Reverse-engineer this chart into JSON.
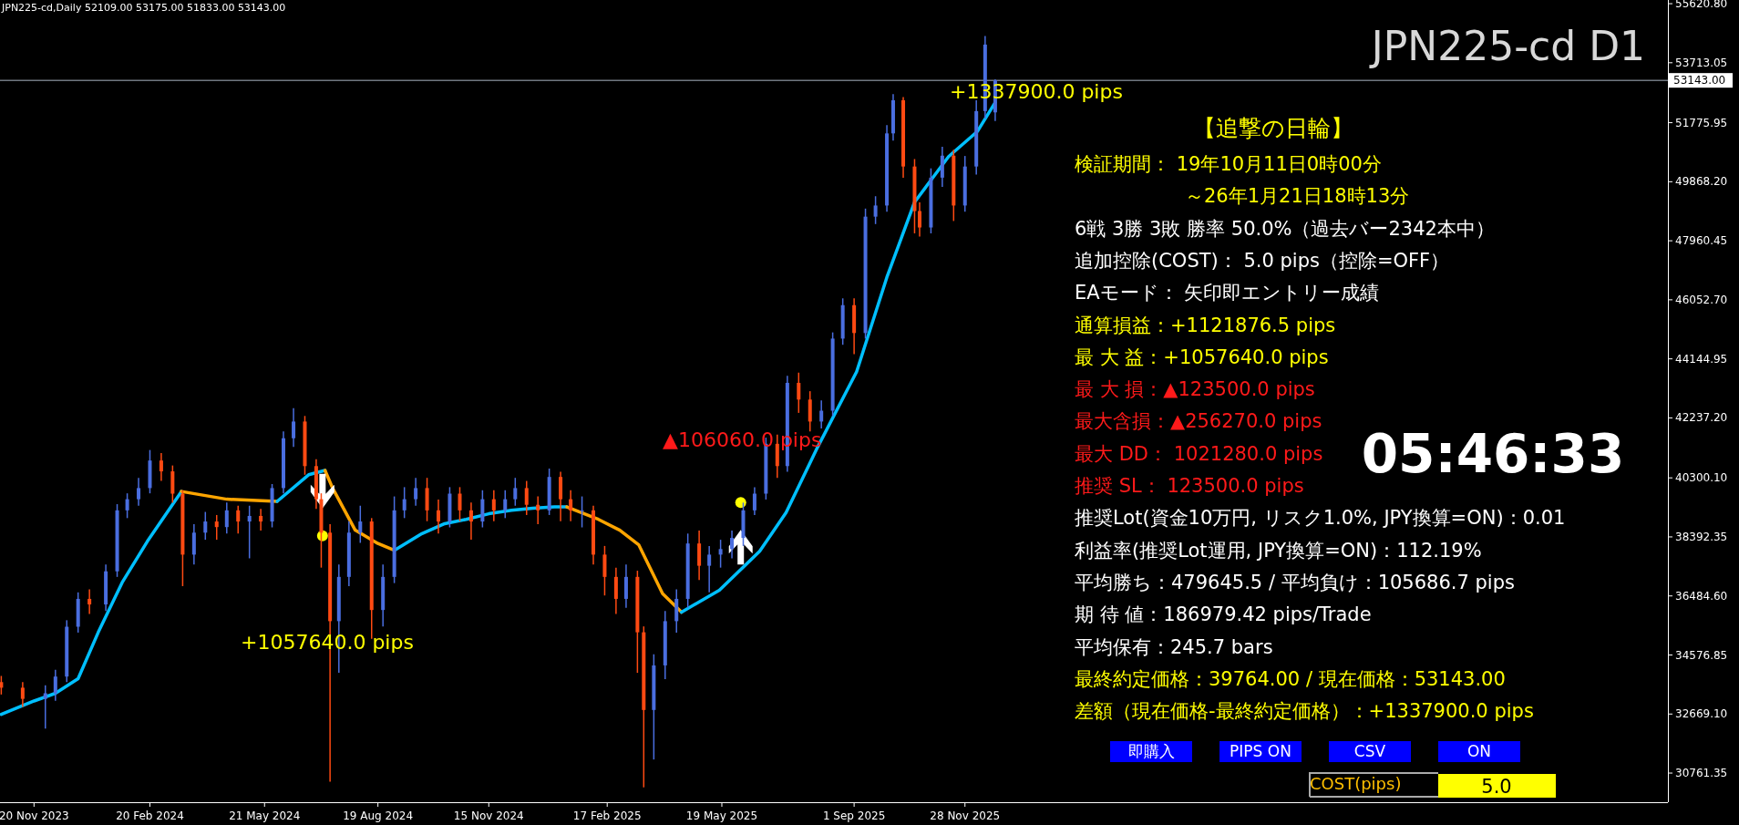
{
  "chart_data": {
    "type": "candlestick",
    "title": "JPN225-cd D1",
    "xlim": [
      "2023-10-24",
      "2027-06-09"
    ],
    "ylim": [
      29820,
      55740
    ],
    "yticks": [
      {
        "value": 55620.8,
        "label": "55620.80"
      },
      {
        "value": 53713.05,
        "label": "53713.05"
      },
      {
        "value": 51775.95,
        "label": "51775.95"
      },
      {
        "value": 49868.2,
        "label": "49868.20"
      },
      {
        "value": 47960.45,
        "label": "47960.45"
      },
      {
        "value": 46052.7,
        "label": "46052.70"
      },
      {
        "value": 44144.95,
        "label": "44144.95"
      },
      {
        "value": 42237.2,
        "label": "42237.20"
      },
      {
        "value": 40300.1,
        "label": "40300.10"
      },
      {
        "value": 38392.35,
        "label": "38392.35"
      },
      {
        "value": 36484.6,
        "label": "36484.60"
      },
      {
        "value": 34576.85,
        "label": "34576.85"
      },
      {
        "value": 32669.1,
        "label": "32669.10"
      },
      {
        "value": 30761.35,
        "label": "30761.35"
      }
    ],
    "xticks": [
      {
        "value": "2023-11-20",
        "label": "20 Nov 2023"
      },
      {
        "value": "2024-02-20",
        "label": "20 Feb 2024"
      },
      {
        "value": "2024-05-21",
        "label": "21 May 2024"
      },
      {
        "value": "2024-08-19",
        "label": "19 Aug 2024"
      },
      {
        "value": "2024-11-15",
        "label": "15 Nov 2024"
      },
      {
        "value": "2025-02-17",
        "label": "17 Feb 2025"
      },
      {
        "value": "2025-05-19",
        "label": "19 May 2025"
      },
      {
        "value": "2025-09-01",
        "label": "1 Sep 2025"
      },
      {
        "value": "2025-11-28",
        "label": "28 Nov 2025"
      }
    ],
    "ref_lines": [
      {
        "axis": "y",
        "value": 53143,
        "label": "53143.00",
        "color": "#a9b4c2"
      }
    ],
    "x": [
      "2023-10-25",
      "2023-11-11",
      "2023-11-29",
      "2023-12-07",
      "2023-12-16",
      "2023-12-25",
      "2024-01-03",
      "2024-01-16",
      "2024-01-25",
      "2024-02-02",
      "2024-02-11",
      "2024-02-20",
      "2024-02-29",
      "2024-03-09",
      "2024-03-17",
      "2024-03-26",
      "2024-04-04",
      "2024-04-13",
      "2024-04-21",
      "2024-04-30",
      "2024-05-09",
      "2024-05-18",
      "2024-05-27",
      "2024-06-05",
      "2024-06-13",
      "2024-06-22",
      "2024-07-01",
      "2024-07-05",
      "2024-07-12",
      "2024-07-19",
      "2024-07-27",
      "2024-08-05",
      "2024-08-14",
      "2024-08-23",
      "2024-09-01",
      "2024-09-09",
      "2024-09-18",
      "2024-09-27",
      "2024-10-06",
      "2024-10-15",
      "2024-10-23",
      "2024-11-01",
      "2024-11-10",
      "2024-11-19",
      "2024-11-28",
      "2024-12-06",
      "2024-12-15",
      "2024-12-24",
      "2025-01-02",
      "2025-01-11",
      "2025-01-19",
      "2025-01-28",
      "2025-02-06",
      "2025-02-15",
      "2025-02-24",
      "2025-03-04",
      "2025-03-13",
      "2025-03-18",
      "2025-03-26",
      "2025-04-04",
      "2025-04-13",
      "2025-04-22",
      "2025-05-01",
      "2025-05-09",
      "2025-05-18",
      "2025-05-27",
      "2025-06-05",
      "2025-06-14",
      "2025-06-23",
      "2025-07-02",
      "2025-07-10",
      "2025-07-19",
      "2025-07-28",
      "2025-08-06",
      "2025-08-15",
      "2025-08-23",
      "2025-09-01",
      "2025-09-10",
      "2025-09-18",
      "2025-09-27",
      "2025-10-02",
      "2025-10-10",
      "2025-10-19",
      "2025-10-23",
      "2025-11-01",
      "2025-11-10",
      "2025-11-19",
      "2025-11-28",
      "2025-12-07",
      "2025-12-14",
      "2025-12-22"
    ],
    "ohlc": [
      [
        33700,
        33900,
        33300,
        33520
      ],
      [
        33520,
        33700,
        32900,
        33160
      ],
      [
        33160,
        33600,
        32200,
        33340
      ],
      [
        33340,
        34100,
        33100,
        33880
      ],
      [
        33880,
        35700,
        33700,
        35490
      ],
      [
        35490,
        36600,
        35300,
        36390
      ],
      [
        36390,
        36700,
        35900,
        36210
      ],
      [
        36210,
        37500,
        36000,
        37280
      ],
      [
        37280,
        39450,
        37100,
        39250
      ],
      [
        39250,
        39800,
        39000,
        39610
      ],
      [
        39610,
        40300,
        39400,
        39970
      ],
      [
        39970,
        41200,
        39800,
        40860
      ],
      [
        40860,
        41100,
        40200,
        40510
      ],
      [
        40510,
        40700,
        39500,
        39790
      ],
      [
        39790,
        39900,
        36800,
        37820
      ],
      [
        37820,
        38800,
        37500,
        38530
      ],
      [
        38530,
        39200,
        38300,
        38890
      ],
      [
        38890,
        39100,
        38300,
        38710
      ],
      [
        38710,
        39500,
        38500,
        39250
      ],
      [
        39250,
        39400,
        38500,
        38890
      ],
      [
        38890,
        39400,
        37700,
        39070
      ],
      [
        39070,
        39300,
        38600,
        38890
      ],
      [
        38890,
        40100,
        38700,
        39970
      ],
      [
        39970,
        41800,
        39800,
        41580
      ],
      [
        41580,
        42550,
        41300,
        42120
      ],
      [
        42120,
        42300,
        40400,
        40680
      ],
      [
        40680,
        40900,
        39300,
        39610
      ],
      [
        39610,
        39800,
        37400,
        38530
      ],
      [
        38530,
        38800,
        30480,
        35670
      ],
      [
        35670,
        37500,
        34000,
        37100
      ],
      [
        37100,
        38900,
        36800,
        38530
      ],
      [
        38530,
        39400,
        38200,
        38890
      ],
      [
        38890,
        39000,
        35100,
        36030
      ],
      [
        36030,
        37500,
        35500,
        37100
      ],
      [
        37100,
        39700,
        36900,
        39250
      ],
      [
        39250,
        40000,
        39000,
        39610
      ],
      [
        39610,
        40300,
        39400,
        39970
      ],
      [
        39970,
        40300,
        38900,
        39250
      ],
      [
        39250,
        39600,
        38500,
        38890
      ],
      [
        38890,
        40000,
        38700,
        39790
      ],
      [
        39790,
        40000,
        38900,
        39250
      ],
      [
        39250,
        39500,
        38300,
        38890
      ],
      [
        38890,
        39900,
        38700,
        39610
      ],
      [
        39610,
        39900,
        38900,
        39250
      ],
      [
        39250,
        39900,
        39000,
        39610
      ],
      [
        39610,
        40300,
        39400,
        39970
      ],
      [
        39970,
        40200,
        39100,
        39430
      ],
      [
        39430,
        39700,
        38800,
        39250
      ],
      [
        39250,
        40600,
        39100,
        40330
      ],
      [
        40330,
        40500,
        38900,
        39610
      ],
      [
        39610,
        39900,
        38900,
        39250
      ],
      [
        39250,
        39700,
        38700,
        39250
      ],
      [
        39250,
        39400,
        37500,
        37820
      ],
      [
        37820,
        38100,
        36500,
        37100
      ],
      [
        37100,
        37400,
        35900,
        36390
      ],
      [
        36390,
        37500,
        36100,
        37100
      ],
      [
        37100,
        37300,
        34000,
        35310
      ],
      [
        35310,
        35500,
        30300,
        32800
      ],
      [
        32800,
        34600,
        31200,
        34240
      ],
      [
        34240,
        36000,
        33800,
        35670
      ],
      [
        35670,
        36700,
        35300,
        36390
      ],
      [
        36390,
        38500,
        36100,
        38180
      ],
      [
        38180,
        38600,
        37000,
        37460
      ],
      [
        37460,
        38100,
        36600,
        37820
      ],
      [
        37820,
        38300,
        37400,
        38000
      ],
      [
        38000,
        38600,
        37700,
        38360
      ],
      [
        38360,
        39500,
        38100,
        39250
      ],
      [
        39250,
        40000,
        39100,
        39790
      ],
      [
        39790,
        41600,
        39600,
        41400
      ],
      [
        41400,
        41700,
        40300,
        40680
      ],
      [
        40680,
        43600,
        40500,
        43370
      ],
      [
        43370,
        43700,
        42400,
        42830
      ],
      [
        42830,
        43100,
        41800,
        42120
      ],
      [
        42120,
        42800,
        41900,
        42470
      ],
      [
        42470,
        45000,
        42300,
        44800
      ],
      [
        44800,
        46100,
        44600,
        45880
      ],
      [
        45880,
        46100,
        44300,
        44980
      ],
      [
        44980,
        49000,
        44800,
        48740
      ],
      [
        48740,
        49400,
        48500,
        49100
      ],
      [
        49100,
        51700,
        48900,
        51430
      ],
      [
        51430,
        52700,
        51200,
        52500
      ],
      [
        52500,
        52600,
        50000,
        50360
      ],
      [
        50360,
        50600,
        48200,
        48920
      ],
      [
        48920,
        49200,
        48100,
        48390
      ],
      [
        48390,
        50300,
        48200,
        50000
      ],
      [
        50000,
        51000,
        49700,
        50710
      ],
      [
        50710,
        50900,
        48600,
        49100
      ],
      [
        49100,
        50700,
        48900,
        50360
      ],
      [
        50360,
        52500,
        50100,
        52150
      ],
      [
        52150,
        54580,
        51900,
        54300
      ],
      [
        52109,
        53175,
        51833,
        53143
      ]
    ],
    "series": [
      {
        "type": "line",
        "color": "#00bfff",
        "x": [
          "2023-10-25",
          "2023-11-20",
          "2023-12-07",
          "2023-12-25",
          "2024-01-10",
          "2024-01-29",
          "2024-02-18",
          "2024-03-16"
        ],
        "values": [
          32660,
          33090,
          33340,
          33810,
          35310,
          36920,
          38250,
          39860
        ]
      },
      {
        "type": "line",
        "color": "#ffa500",
        "x": [
          "2024-03-16",
          "2024-04-21",
          "2024-05-31"
        ],
        "values": [
          39860,
          39610,
          39540
        ]
      },
      {
        "type": "line",
        "color": "#00bfff",
        "x": [
          "2024-05-31",
          "2024-06-25",
          "2024-07-08"
        ],
        "values": [
          39540,
          40400,
          40540
        ]
      },
      {
        "type": "line",
        "color": "#ffa500",
        "x": [
          "2024-07-08",
          "2024-07-14",
          "2024-08-01",
          "2024-08-19",
          "2024-09-01"
        ],
        "values": [
          40540,
          39970,
          38610,
          38180,
          37960
        ]
      },
      {
        "type": "line",
        "color": "#00bfff",
        "x": [
          "2024-09-01",
          "2024-09-23",
          "2024-10-11",
          "2024-10-28",
          "2024-11-15",
          "2024-12-03",
          "2024-12-20",
          "2025-01-06",
          "2025-01-16"
        ],
        "values": [
          37960,
          38500,
          38820,
          38960,
          39140,
          39250,
          39320,
          39360,
          39360
        ]
      },
      {
        "type": "line",
        "color": "#ffa500",
        "x": [
          "2025-01-16",
          "2025-02-10",
          "2025-02-27",
          "2025-03-14",
          "2025-04-02",
          "2025-04-17"
        ],
        "values": [
          39360,
          38960,
          38610,
          38140,
          36560,
          35960
        ]
      },
      {
        "type": "line",
        "color": "#00bfff",
        "x": [
          "2025-04-17",
          "2025-05-17",
          "2025-06-18",
          "2025-07-09",
          "2025-08-03",
          "2025-09-03",
          "2025-09-27",
          "2025-10-19",
          "2025-11-15",
          "2025-12-08",
          "2025-12-22"
        ],
        "values": [
          35960,
          36670,
          37930,
          39180,
          41290,
          43730,
          46780,
          49210,
          50680,
          51500,
          52430
        ]
      },
      {
        "type": "scatter",
        "color": "#ffff00",
        "x": [
          "2024-07-06",
          "2025-06-03"
        ],
        "values": [
          38430,
          39500
        ]
      }
    ],
    "annotations": [
      "JPN225-cd,Daily  52109.00 53175.00 51833.00 53143.00",
      "【追撃の日輪】",
      "検証期間： 19年10月11日0時00分",
      "～26年1月21日18時13分",
      "6戦 3勝 3敗 勝率 50.0%（過去バー2342本中）",
      "追加控除(COST)： 5.0 pips（控除=OFF）",
      "EAモード： 矢印即エントリー成績",
      "通算損益：+1121876.5 pips",
      "最 大 益：+1057640.0 pips",
      "最 大 損：▲123500.0 pips",
      "最大含損：▲256270.0 pips",
      "最大  DD： 1021280.0 pips",
      "推奨  SL： 123500.0 pips",
      "推奨Lot(資金10万円, リスク1.0%, JPY換算=ON)：0.01",
      "利益率(推奨Lot運用, JPY換算=ON)：112.19%",
      "平均勝ち：479645.5 / 平均負け：105686.7 pips",
      "期 待 値：186979.42 pips/Trade",
      "平均保有：245.7 bars",
      "最終約定価格：39764.00 / 現在価格：53143.00",
      "差額（現在価格-最終約定価格）：+1337900.0 pips",
      "05:46:33",
      "即購入",
      "PIPS ON",
      "CSV",
      "ON",
      "COST(pips)",
      "5.0",
      "+1057640.0 pips",
      "▲106060.0 pips",
      "+1337900.0 pips"
    ]
  }
}
